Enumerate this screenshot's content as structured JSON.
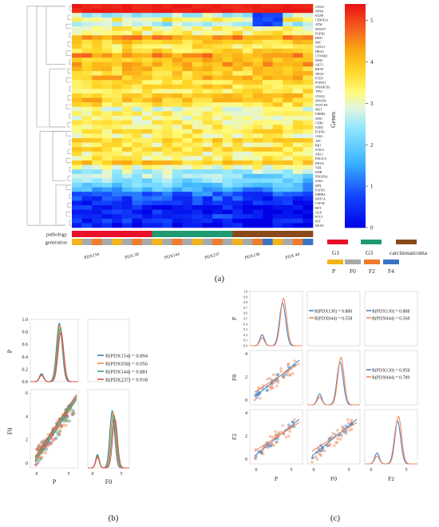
{
  "chart_data": [
    {
      "panel": "(a)",
      "type": "heatmap",
      "genes": [
        "GNAS",
        "NPM1",
        "EGFR",
        "CDKN2A",
        "ATM",
        "FBXW7",
        "FGFR2",
        "IDH1",
        "SRC",
        "GNA11",
        "HRAS",
        "CTNNB1",
        "IDH2",
        "AKT1",
        "BRAF",
        "NRAS",
        "PTEN",
        "PTPN11",
        "SMARCB1",
        "TP53",
        "GNAQ",
        "SMAD4",
        "NOTCH1",
        "MET",
        "ERBB2",
        "SMO",
        "CDH1",
        "EZH2",
        "FGFR1",
        "JAK2",
        "APC",
        "RB1",
        "STK11",
        "ABL1",
        "PIK3CA",
        "KRAS",
        "VHL",
        "KDR",
        "PDGFRA",
        "JAK3",
        "MPL",
        "FGFR3",
        "ERBB4",
        "HNF1A",
        "CSF1R",
        "RET",
        "ALK",
        "FLT3",
        "KIT",
        "MLH1"
      ],
      "samples": [
        "PDX154",
        "PDX 58",
        "PDX144",
        "PDX237",
        "PDX130",
        "PDX 44"
      ],
      "row_label_pathology": "pathology",
      "row_label_generation": "generation",
      "colorbar": {
        "label": "Genes",
        "ticks": [
          "0",
          "1",
          "2",
          "3",
          "4",
          "5"
        ],
        "range": [
          0,
          5.4
        ]
      },
      "pathology_legend": [
        {
          "label": "G1",
          "color": "#e8102a"
        },
        {
          "label": "G3",
          "color": "#1f9a72"
        },
        {
          "label": "carcinosarcoma",
          "color": "#8b4a1c"
        }
      ],
      "generation_legend": [
        {
          "label": "P",
          "color": "#f2b31b"
        },
        {
          "label": "F0",
          "color": "#a9a9a9"
        },
        {
          "label": "F2",
          "color": "#f07b2c"
        },
        {
          "label": "F4",
          "color": "#3a74c4"
        }
      ],
      "row_levels": [
        5.3,
        5.2,
        2.7,
        3.4,
        2.6,
        3.3,
        3.4,
        4.4,
        3.9,
        3.6,
        3.7,
        4.4,
        4.1,
        4.2,
        4.0,
        3.8,
        4.0,
        3.6,
        3.7,
        3.6,
        3.9,
        4.0,
        3.6,
        3.1,
        3.3,
        3.2,
        3.3,
        3.4,
        3.6,
        3.3,
        3.7,
        3.4,
        3.6,
        3.3,
        3.4,
        3.9,
        3.1,
        2.7,
        2.6,
        2.3,
        2.0,
        1.7,
        1.1,
        0.8,
        0.6,
        0.4,
        0.4,
        0.6,
        0.5,
        0.3
      ]
    },
    {
      "panel": "(b)",
      "type": "scatter",
      "xlabel": "P",
      "ylabel_top": "P",
      "ylabel_bottom": "F0",
      "xlabel_right": "F0",
      "y_ticks_top": [
        "0.0",
        "0.2",
        "0.4",
        "0.6",
        "0.8",
        "1.0"
      ],
      "y_ticks_bottom": [
        "0",
        "2",
        "4",
        "6"
      ],
      "x_ticks": [
        "0",
        "5"
      ],
      "series": [
        {
          "name": "R(PDX154) = 0.894",
          "color": "#2e86ab",
          "peak": 0.94,
          "lowpeak": 0.13
        },
        {
          "name": "R(PDX058) = 0.956",
          "color": "#f08a3c",
          "peak": 0.91,
          "lowpeak": 0.1
        },
        {
          "name": "R(PDX144) = 0.881",
          "color": "#3aa876",
          "peak": 0.86,
          "lowpeak": 0.12
        },
        {
          "name": "R(PDX237) = 0.918",
          "color": "#e2534f",
          "peak": 0.8,
          "lowpeak": 0.11
        }
      ]
    },
    {
      "panel": "(c)",
      "type": "scatter",
      "xlabels": [
        "P",
        "F0",
        "F2"
      ],
      "ylabels": [
        "P",
        "F0",
        "F2"
      ],
      "y_ticks_top": [
        "0.0",
        "0.1",
        "0.2",
        "0.3",
        "0.4",
        "0.5",
        "0.6",
        "0.7",
        "0.8",
        "0.9",
        "1.0"
      ],
      "y_ticks_mid": [
        "0",
        "2",
        "4"
      ],
      "y_ticks_bot": [
        "0",
        "2",
        "4"
      ],
      "x_ticks": [
        "0",
        "5"
      ],
      "legend_P_F0": [
        "R(PDX130) = 0.880",
        "R(PDX044) = 0.558"
      ],
      "legend_P_F2": [
        "R(PDX130) = 0.888",
        "R(PDX044) = 0.568"
      ],
      "legend_F0_F2": [
        "R(PDX130) = 0.958",
        "R(PDX044) = 0.789"
      ],
      "series": [
        {
          "name": "PDX130",
          "color": "#4a7fc1"
        },
        {
          "name": "PDX044",
          "color": "#f08a5c"
        }
      ]
    }
  ],
  "labels": {
    "a": "(a)",
    "b": "(b)",
    "c": "(c)"
  }
}
